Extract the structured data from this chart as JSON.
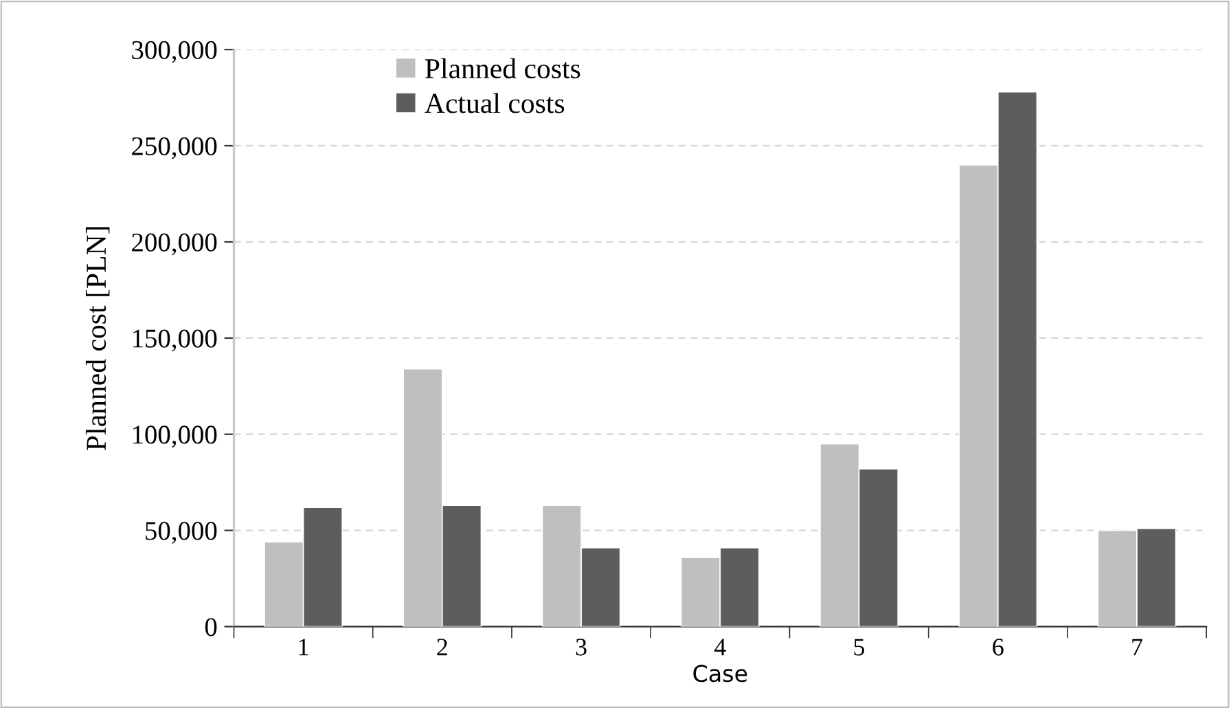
{
  "chart_data": {
    "type": "bar",
    "xlabel": "Case",
    "ylabel": "Planned cost [PLN]",
    "categories": [
      "1",
      "2",
      "3",
      "4",
      "5",
      "6",
      "7"
    ],
    "series": [
      {
        "name": "Planned costs",
        "color": "#bfbfbf",
        "values": [
          44000,
          134000,
          63000,
          36000,
          95000,
          240000,
          50000
        ]
      },
      {
        "name": "Actual costs",
        "color": "#5d5d5d",
        "values": [
          62000,
          63000,
          41000,
          41000,
          82000,
          278000,
          51000
        ]
      }
    ],
    "ylim": [
      0,
      300000
    ],
    "yticks": [
      {
        "value": 0,
        "label": "0"
      },
      {
        "value": 50000,
        "label": "50,000"
      },
      {
        "value": 100000,
        "label": "100,000"
      },
      {
        "value": 150000,
        "label": "150,000"
      },
      {
        "value": 200000,
        "label": "200,000"
      },
      {
        "value": 250000,
        "label": "250,000"
      },
      {
        "value": 300000,
        "label": "300,000"
      }
    ],
    "grid": "y",
    "legend": "top left"
  }
}
